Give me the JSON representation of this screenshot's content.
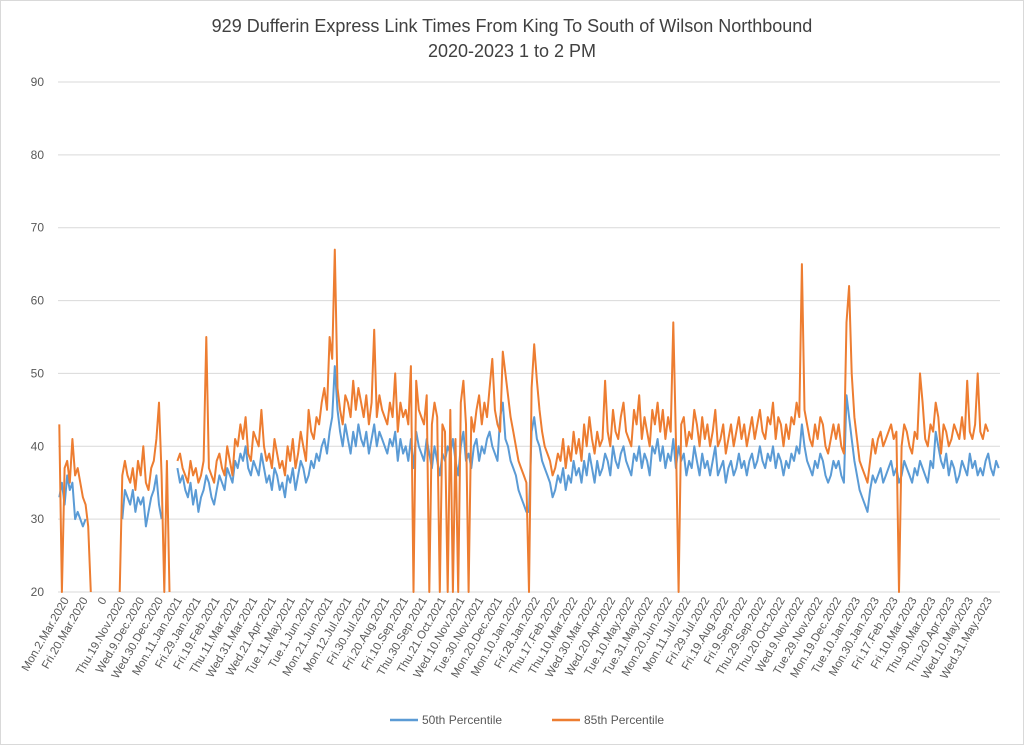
{
  "chart_data": {
    "type": "line",
    "title": "929 Dufferin Express Link Times From King To South of Wilson Northbound",
    "subtitle": "2020-2023 1 to 2 PM",
    "xlabel": "",
    "ylabel": "",
    "ylim": [
      20,
      90
    ],
    "yticks": [
      20,
      30,
      40,
      50,
      60,
      70,
      80,
      90
    ],
    "grid": true,
    "legend": "bottom",
    "x_tick_labels": [
      "Mon.2.Mar.2020",
      "Fri.20.Mar.2020",
      "0",
      "Thu.19.Nov.2020",
      "Wed.9.Dec.2020",
      "Wed.30.Dec.2020",
      "Mon.11.Jan.2021",
      "Fri.29.Jan.2021",
      "Fri.19.Feb.2021",
      "Thu.11.Mar.2021",
      "Wed.31.Mar.2021",
      "Wed.21.Apr.2021",
      "Tue.11.May.2021",
      "Tue.1.Jun.2021",
      "Mon.21.Jun.2021",
      "Mon.12.Jul.2021",
      "Fri.30.Jul.2021",
      "Fri.20.Aug.2021",
      "Fri.10.Sep.2021",
      "Thu.30.Sep.2021",
      "Thu.21.Oct.2021",
      "Wed.10.Nov.2021",
      "Tue.30.Nov.2021",
      "Mon.20.Dec.2021",
      "Mon.10.Jan.2022",
      "Fri.28.Jan.2022",
      "Thu.17.Feb.2022",
      "Thu.10.Mar.2022",
      "Wed.30.Mar.2022",
      "Wed.20.Apr.2022",
      "Tue.10.May.2022",
      "Tue.31.May.2022",
      "Mon.20.Jun.2022",
      "Mon.11.Jul.2022",
      "Fri.29.Jul.2022",
      "Fri.19.Aug.2022",
      "Fri.9.Sep.2022",
      "Thu.29.Sep.2022",
      "Thu.20.Oct.2022",
      "Wed.9.Nov.2022",
      "Tue.29.Nov.2022",
      "Mon.19.Dec.2022",
      "Tue.10.Jan.2023",
      "Mon.30.Jan.2023",
      "Fri.17.Feb.2023",
      "Fri.10.Mar.2023",
      "Thu.30.Mar.2023",
      "Thu.20.Apr.2023",
      "Wed.10.May.2023",
      "Wed.31.May.2023"
    ],
    "series": [
      {
        "name": "50th Percentile",
        "color": "#5b9bd5",
        "values": [
          33,
          35,
          32,
          36,
          34,
          35,
          30,
          31,
          30,
          29,
          30,
          null,
          null,
          null,
          null,
          null,
          null,
          null,
          null,
          null,
          null,
          null,
          null,
          null,
          30,
          34,
          33,
          32,
          34,
          31,
          33,
          32,
          33,
          29,
          31,
          33,
          34,
          36,
          32,
          30,
          null,
          null,
          null,
          null,
          null,
          37,
          35,
          36,
          34,
          33,
          35,
          32,
          34,
          31,
          33,
          34,
          36,
          35,
          33,
          32,
          34,
          36,
          35,
          34,
          37,
          36,
          35,
          38,
          37,
          39,
          38,
          40,
          37,
          36,
          38,
          37,
          36,
          39,
          37,
          35,
          36,
          34,
          37,
          36,
          34,
          35,
          33,
          36,
          35,
          37,
          34,
          36,
          38,
          37,
          35,
          36,
          38,
          37,
          39,
          38,
          40,
          41,
          39,
          42,
          44,
          51,
          45,
          42,
          40,
          43,
          41,
          39,
          42,
          40,
          43,
          41,
          40,
          42,
          39,
          41,
          43,
          40,
          42,
          41,
          40,
          39,
          41,
          40,
          42,
          38,
          41,
          39,
          40,
          38,
          41,
          37,
          42,
          40,
          39,
          38,
          41,
          39,
          37,
          40,
          38,
          36,
          39,
          38,
          40,
          39,
          41,
          38,
          36,
          40,
          42,
          38,
          39,
          37,
          40,
          41,
          38,
          40,
          39,
          41,
          42,
          40,
          39,
          38,
          44,
          46,
          41,
          40,
          38,
          37,
          36,
          34,
          33,
          32,
          31,
          31,
          42,
          44,
          41,
          40,
          38,
          37,
          36,
          35,
          33,
          34,
          36,
          35,
          37,
          34,
          36,
          35,
          38,
          36,
          37,
          35,
          38,
          36,
          39,
          37,
          35,
          38,
          36,
          37,
          39,
          38,
          36,
          40,
          38,
          37,
          39,
          40,
          38,
          37,
          36,
          39,
          38,
          40,
          37,
          39,
          38,
          36,
          40,
          39,
          41,
          38,
          40,
          37,
          39,
          38,
          41,
          37,
          40,
          38,
          39,
          36,
          38,
          37,
          40,
          38,
          36,
          39,
          37,
          38,
          36,
          38,
          40,
          36,
          37,
          38,
          35,
          37,
          38,
          36,
          37,
          39,
          37,
          38,
          36,
          38,
          39,
          37,
          38,
          40,
          38,
          37,
          39,
          38,
          40,
          37,
          39,
          38,
          36,
          38,
          37,
          39,
          38,
          40,
          39,
          43,
          40,
          38,
          37,
          36,
          38,
          37,
          39,
          38,
          36,
          35,
          36,
          38,
          37,
          38,
          36,
          35,
          47,
          44,
          41,
          38,
          36,
          34,
          33,
          32,
          31,
          34,
          36,
          35,
          36,
          37,
          35,
          36,
          37,
          38,
          36,
          37,
          35,
          36,
          38,
          37,
          36,
          35,
          37,
          36,
          38,
          37,
          36,
          35,
          38,
          37,
          42,
          40,
          38,
          37,
          39,
          36,
          38,
          37,
          35,
          36,
          38,
          37,
          36,
          39,
          37,
          38,
          36,
          37,
          36,
          38,
          39,
          37,
          36,
          38,
          37
        ]
      },
      {
        "name": "85th Percentile",
        "color": "#ed7d31",
        "values": [
          43,
          20,
          37,
          38,
          35,
          41,
          36,
          37,
          35,
          33,
          32,
          29,
          20,
          null,
          null,
          null,
          null,
          null,
          null,
          null,
          null,
          null,
          null,
          20,
          36,
          38,
          36,
          35,
          37,
          34,
          38,
          36,
          40,
          35,
          34,
          37,
          38,
          41,
          46,
          36,
          20,
          38,
          20,
          null,
          null,
          38,
          39,
          37,
          36,
          35,
          38,
          36,
          37,
          35,
          36,
          38,
          55,
          37,
          36,
          35,
          38,
          39,
          37,
          36,
          40,
          38,
          36,
          41,
          40,
          43,
          41,
          44,
          39,
          38,
          42,
          41,
          40,
          45,
          40,
          38,
          39,
          37,
          41,
          39,
          37,
          38,
          36,
          40,
          38,
          41,
          37,
          39,
          42,
          40,
          38,
          45,
          42,
          41,
          44,
          43,
          46,
          48,
          45,
          55,
          52,
          67,
          48,
          45,
          43,
          47,
          46,
          44,
          49,
          45,
          48,
          46,
          44,
          47,
          43,
          46,
          56,
          44,
          47,
          45,
          44,
          43,
          46,
          44,
          50,
          42,
          46,
          44,
          45,
          43,
          51,
          20,
          49,
          45,
          44,
          43,
          47,
          20,
          43,
          46,
          44,
          20,
          43,
          42,
          20,
          45,
          20,
          41,
          20,
          46,
          49,
          43,
          20,
          44,
          42,
          45,
          47,
          43,
          46,
          44,
          48,
          52,
          45,
          43,
          42,
          53,
          50,
          47,
          44,
          42,
          40,
          38,
          37,
          36,
          35,
          20,
          48,
          54,
          49,
          45,
          42,
          40,
          39,
          38,
          36,
          37,
          39,
          38,
          41,
          37,
          40,
          38,
          42,
          39,
          41,
          38,
          43,
          40,
          44,
          41,
          39,
          42,
          40,
          41,
          49,
          42,
          40,
          45,
          42,
          41,
          44,
          46,
          42,
          41,
          40,
          45,
          43,
          47,
          41,
          44,
          42,
          40,
          45,
          43,
          46,
          42,
          45,
          41,
          44,
          42,
          57,
          41,
          20,
          43,
          44,
          40,
          42,
          41,
          45,
          43,
          40,
          44,
          41,
          43,
          40,
          42,
          45,
          40,
          41,
          43,
          39,
          41,
          43,
          40,
          42,
          44,
          41,
          43,
          40,
          42,
          44,
          41,
          43,
          45,
          42,
          41,
          44,
          43,
          46,
          41,
          44,
          43,
          40,
          43,
          41,
          44,
          43,
          46,
          44,
          65,
          45,
          43,
          41,
          40,
          43,
          41,
          44,
          43,
          40,
          39,
          41,
          43,
          41,
          43,
          40,
          39,
          57,
          62,
          50,
          44,
          41,
          38,
          37,
          36,
          35,
          38,
          41,
          39,
          41,
          42,
          40,
          41,
          42,
          43,
          41,
          42,
          20,
          40,
          43,
          42,
          40,
          39,
          42,
          41,
          50,
          46,
          41,
          40,
          43,
          42,
          46,
          44,
          39,
          43,
          42,
          40,
          41,
          43,
          42,
          41,
          44,
          41,
          49,
          42,
          41,
          43,
          50,
          42,
          41,
          43,
          42
        ]
      }
    ]
  }
}
